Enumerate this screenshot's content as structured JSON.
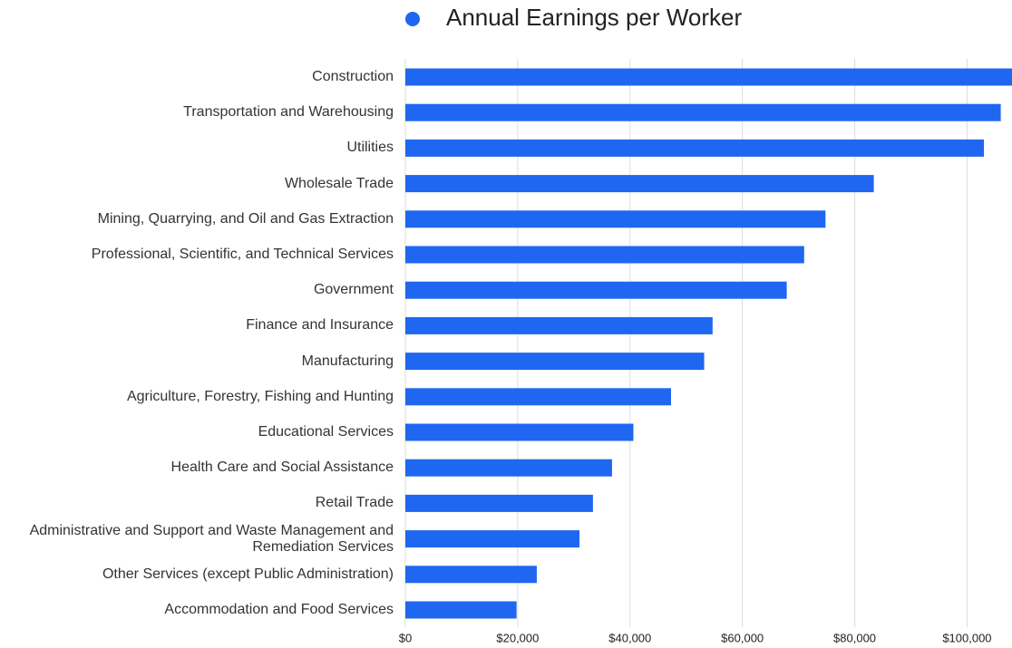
{
  "chart_data": {
    "type": "hbar",
    "categories": [
      "Construction",
      "Transportation and Warehousing",
      "Utilities",
      "Wholesale Trade",
      "Mining, Quarrying, and Oil and Gas Extraction",
      "Professional, Scientific, and Technical Services",
      "Government",
      "Finance and Insurance",
      "Manufacturing",
      "Agriculture, Forestry, Fishing and Hunting",
      "Educational Services",
      "Health Care and Social Assistance",
      "Retail Trade",
      "Administrative and Support and Waste Management and Remediation Services",
      "Other Services (except Public Administration)",
      "Accommodation and Food Services"
    ],
    "series": [
      {
        "name": "Annual Earnings per Worker",
        "color": "#1f67f0",
        "values": [
          109000,
          106000,
          103000,
          83400,
          74800,
          71000,
          67900,
          54700,
          53200,
          47300,
          40600,
          36800,
          33400,
          31000,
          23400,
          19800
        ]
      }
    ],
    "xlim": [
      0,
      108000
    ],
    "xticks": [
      {
        "value": 0,
        "label": "$0"
      },
      {
        "value": 20000,
        "label": "$20,000"
      },
      {
        "value": 40000,
        "label": "$40,000"
      },
      {
        "value": 60000,
        "label": "$60,000"
      },
      {
        "value": 80000,
        "label": "$80,000"
      },
      {
        "value": 100000,
        "label": "$100,000"
      }
    ],
    "grid": true,
    "legend": "top"
  }
}
